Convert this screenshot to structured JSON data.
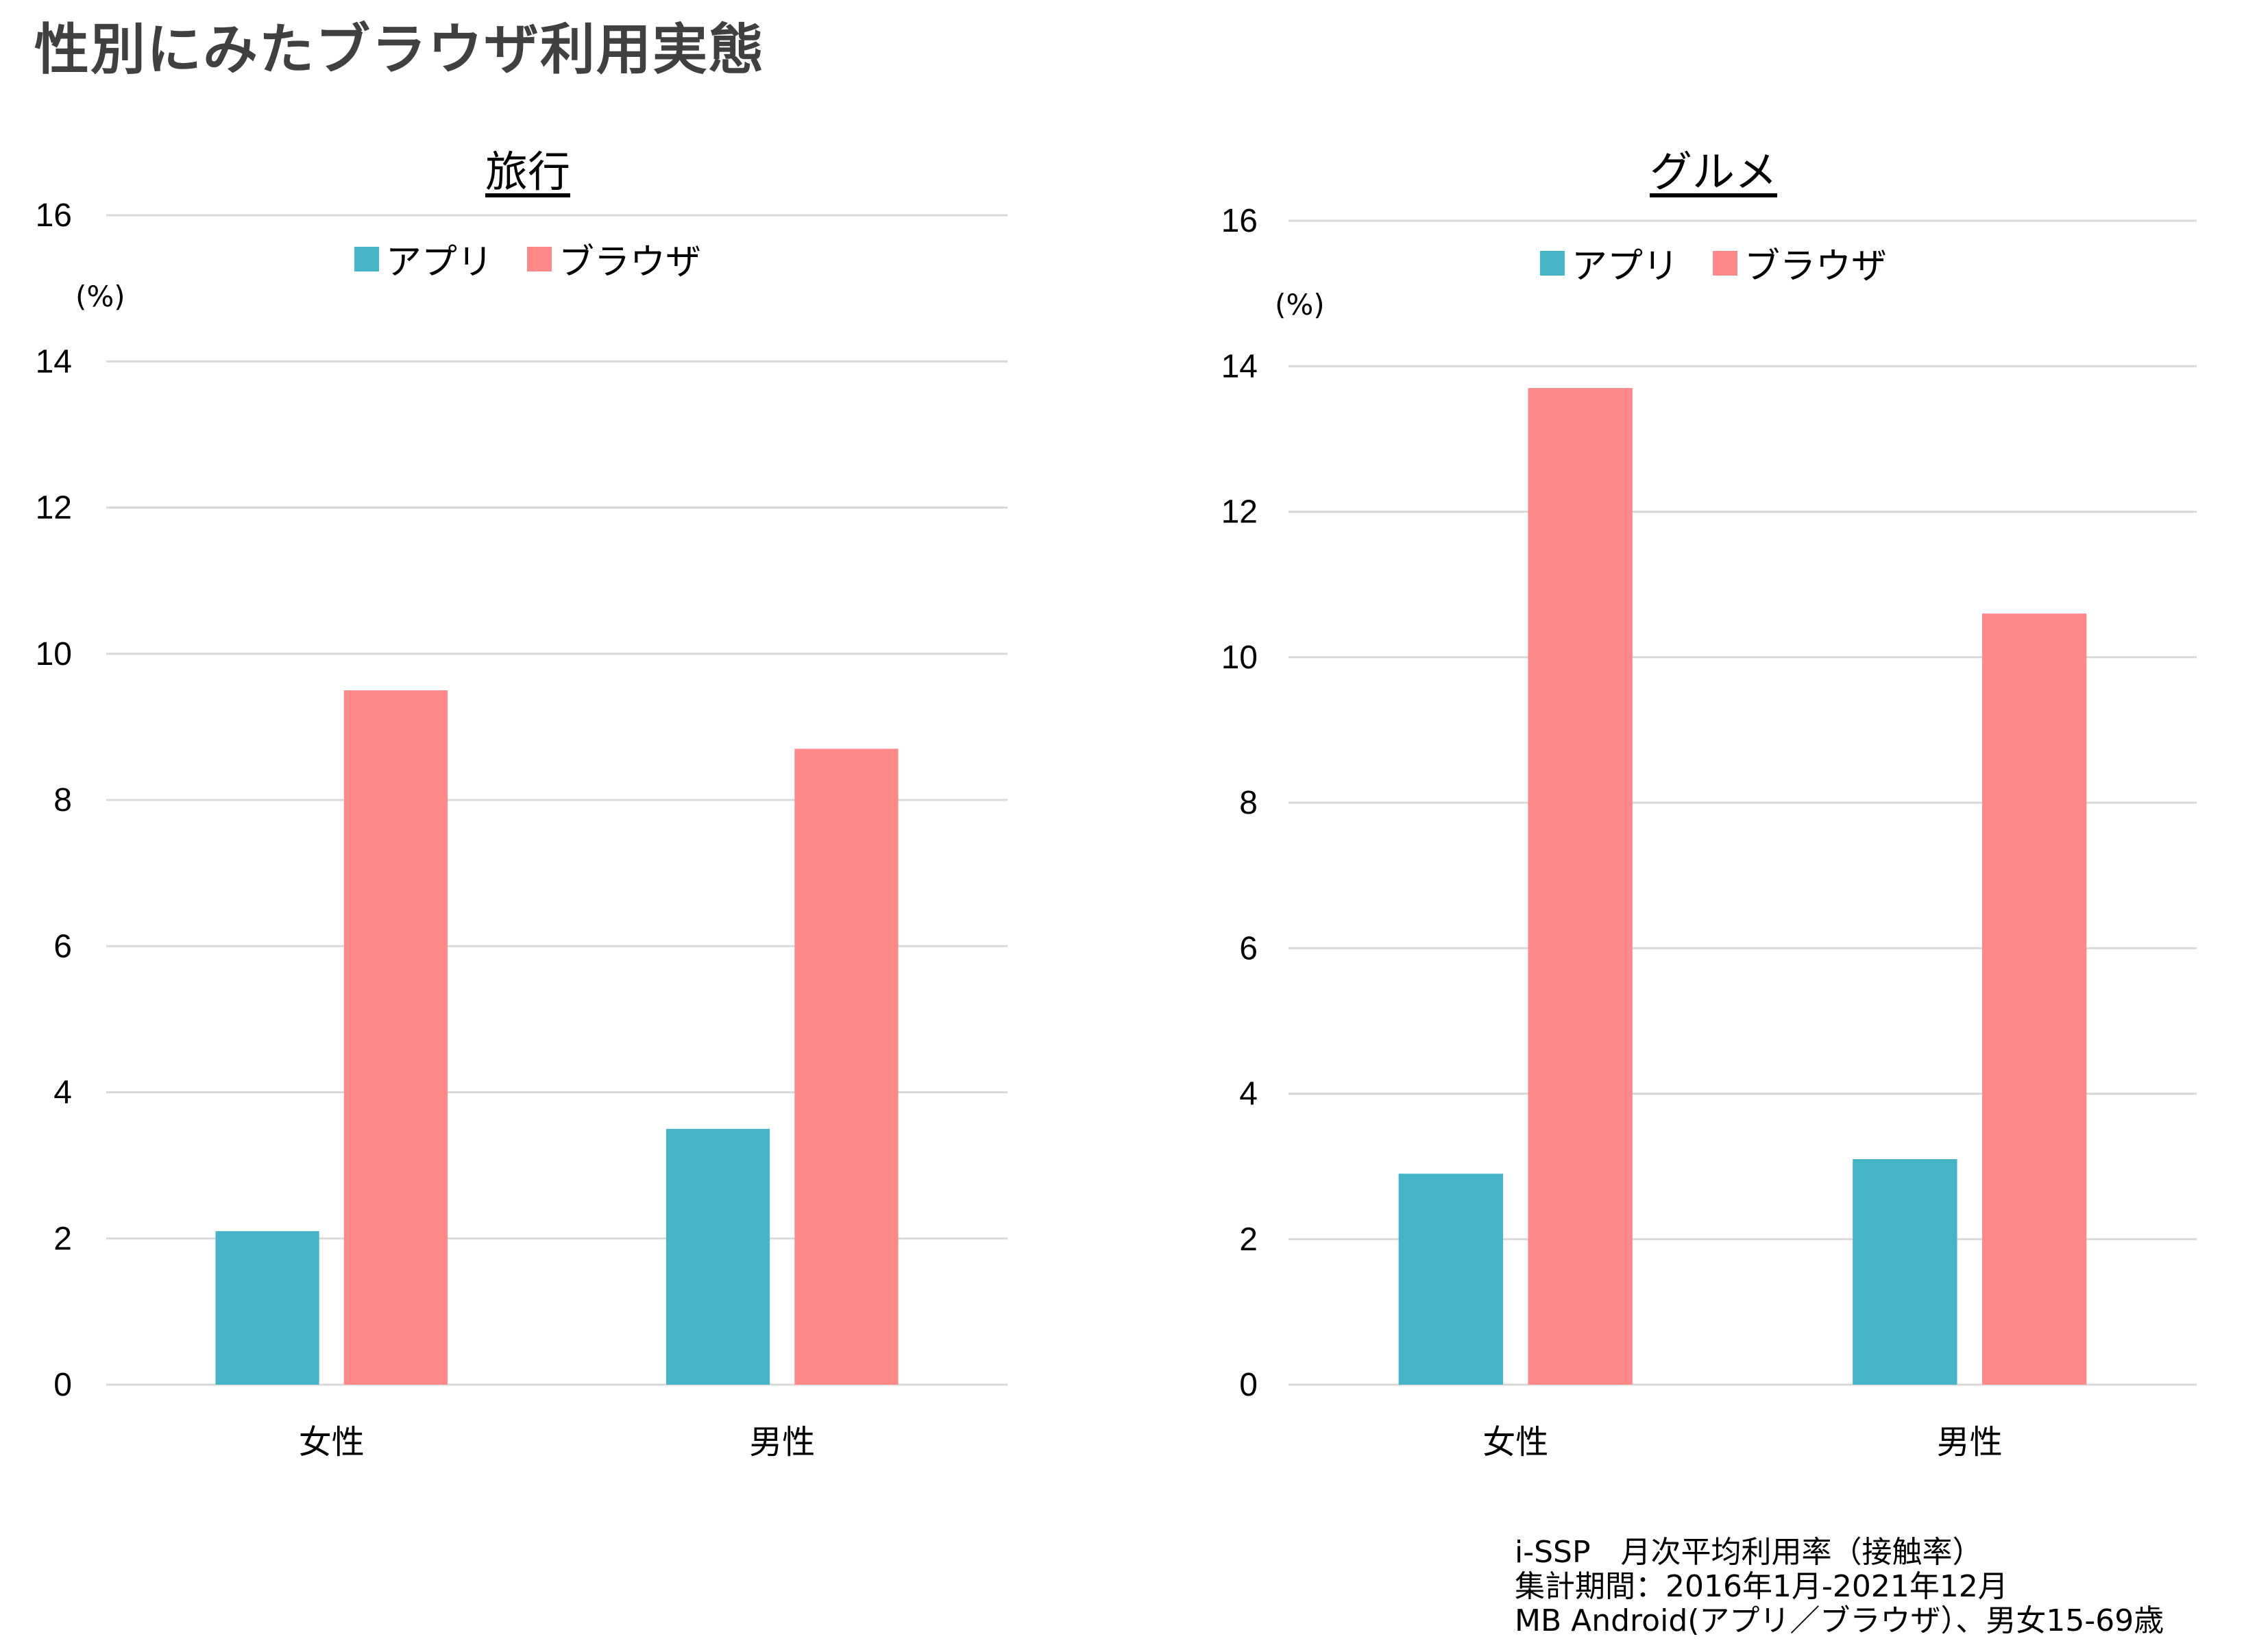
{
  "page": {
    "title": "性別にみたブラウザ利用実態"
  },
  "legend": {
    "app_label": "アプリ",
    "browser_label": "ブラウザ"
  },
  "colors": {
    "app": "#45B4C7",
    "browser": "#FF8989",
    "grid": "#D9D9D9",
    "title": "#404040"
  },
  "footnote": {
    "line1": "i-SSP　月次平均利用率（接触率）",
    "line2": "集計期間：2016年1月-2021年12月",
    "line3": "MB Android(アプリ／ブラウザ）、男女15-69歳"
  },
  "chart_data": [
    {
      "type": "bar",
      "title": "旅行",
      "unit_label": "(%)",
      "categories": [
        "女性",
        "男性"
      ],
      "series": [
        {
          "name": "アプリ",
          "values": [
            2.1,
            3.5
          ]
        },
        {
          "name": "ブラウザ",
          "values": [
            9.5,
            8.7
          ]
        }
      ],
      "ylim": [
        0,
        16
      ],
      "yticks": [
        0,
        2,
        4,
        6,
        8,
        10,
        12,
        14,
        16
      ],
      "grid": true,
      "legend_position": "top-center"
    },
    {
      "type": "bar",
      "title": "グルメ",
      "unit_label": "(%)",
      "categories": [
        "女性",
        "男性"
      ],
      "series": [
        {
          "name": "アプリ",
          "values": [
            2.9,
            3.1
          ]
        },
        {
          "name": "ブラウザ",
          "values": [
            13.7,
            10.6
          ]
        }
      ],
      "ylim": [
        0,
        16
      ],
      "yticks": [
        0,
        2,
        4,
        6,
        8,
        10,
        12,
        14,
        16
      ],
      "grid": true,
      "legend_position": "top-center"
    }
  ]
}
